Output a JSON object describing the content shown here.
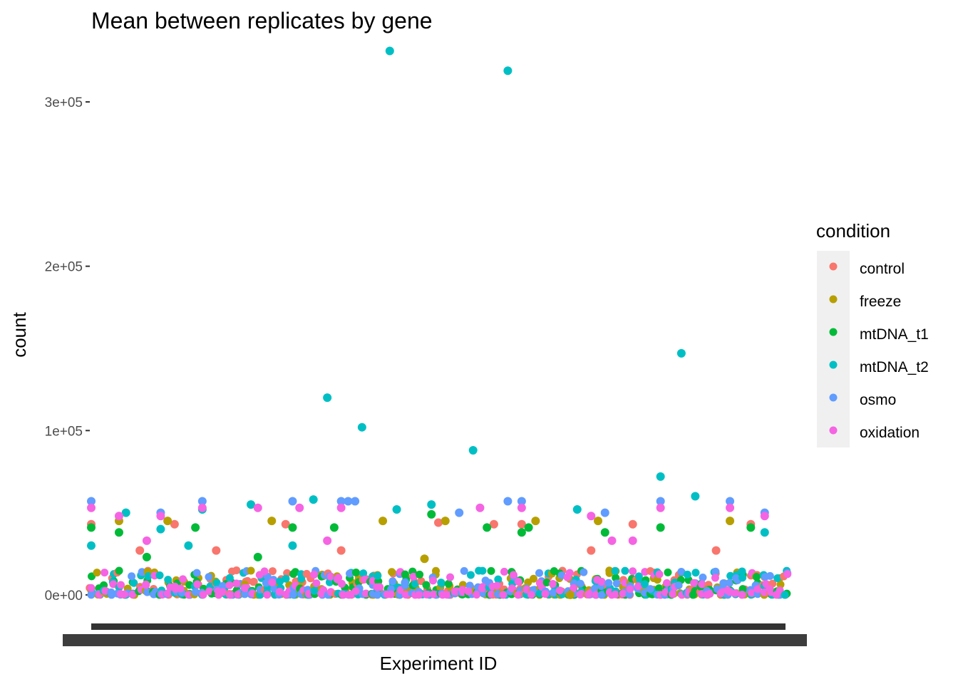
{
  "chart_data": {
    "type": "scatter",
    "title": "Mean between replicates by gene",
    "xlabel": "Experiment ID",
    "ylabel": "count",
    "ylim": [
      -10000,
      336000
    ],
    "y_ticks": [
      {
        "value": 0,
        "label": "0e+00"
      },
      {
        "value": 100000,
        "label": "1e+05"
      },
      {
        "value": 200000,
        "label": "2e+05"
      },
      {
        "value": 300000,
        "label": "3e+05"
      }
    ],
    "x_tick_labels_note": "x-axis tick labels overlap and are illegible",
    "grid": false,
    "legend": {
      "title": "condition",
      "position": "right",
      "entries": [
        {
          "name": "control",
          "color": "#F8766D"
        },
        {
          "name": "freeze",
          "color": "#B79F00"
        },
        {
          "name": "mtDNA_t1",
          "color": "#00BA38"
        },
        {
          "name": "mtDNA_t2",
          "color": "#00BFC4"
        },
        {
          "name": "osmo",
          "color": "#619CFF"
        },
        {
          "name": "oxidation",
          "color": "#F564E3"
        }
      ]
    },
    "x_range": [
      0,
      100
    ],
    "series": [
      {
        "name": "mtDNA_t2",
        "points": [
          [
            43,
            331000
          ],
          [
            60,
            319000
          ],
          [
            85,
            147000
          ],
          [
            34,
            120000
          ],
          [
            39,
            102000
          ],
          [
            55,
            88000
          ],
          [
            82,
            72000
          ],
          [
            87,
            60000
          ],
          [
            44,
            52000
          ],
          [
            70,
            52000
          ],
          [
            32,
            58000
          ],
          [
            5,
            50000
          ],
          [
            10,
            40000
          ],
          [
            16,
            52000
          ],
          [
            23,
            55000
          ],
          [
            49,
            55000
          ],
          [
            97,
            38000
          ],
          [
            0,
            30000
          ],
          [
            14,
            30000
          ],
          [
            29,
            30000
          ]
        ]
      },
      {
        "name": "control",
        "points": [
          [
            0,
            43000
          ],
          [
            12,
            43000
          ],
          [
            28,
            43000
          ],
          [
            50,
            44000
          ],
          [
            58,
            43000
          ],
          [
            62,
            43000
          ],
          [
            78,
            43000
          ],
          [
            95,
            43000
          ],
          [
            7,
            27000
          ],
          [
            18,
            27000
          ],
          [
            36,
            27000
          ],
          [
            72,
            27000
          ],
          [
            90,
            27000
          ]
        ]
      },
      {
        "name": "freeze",
        "points": [
          [
            4,
            45000
          ],
          [
            11,
            45000
          ],
          [
            26,
            45000
          ],
          [
            42,
            45000
          ],
          [
            51,
            45000
          ],
          [
            64,
            45000
          ],
          [
            73,
            45000
          ],
          [
            92,
            45000
          ],
          [
            48,
            22000
          ],
          [
            69,
            0
          ]
        ]
      },
      {
        "name": "mtDNA_t1",
        "points": [
          [
            0,
            41000
          ],
          [
            4,
            38000
          ],
          [
            15,
            41000
          ],
          [
            29,
            41000
          ],
          [
            35,
            41000
          ],
          [
            49,
            49000
          ],
          [
            57,
            41000
          ],
          [
            63,
            41000
          ],
          [
            74,
            38000
          ],
          [
            82,
            41000
          ],
          [
            95,
            41000
          ],
          [
            8,
            23000
          ],
          [
            24,
            23000
          ],
          [
            62,
            38000
          ]
        ]
      },
      {
        "name": "osmo",
        "points": [
          [
            0,
            57000
          ],
          [
            10,
            50000
          ],
          [
            16,
            57000
          ],
          [
            29,
            57000
          ],
          [
            36,
            57000
          ],
          [
            53,
            50000
          ],
          [
            60,
            57000
          ],
          [
            62,
            57000
          ],
          [
            74,
            50000
          ],
          [
            82,
            57000
          ],
          [
            92,
            57000
          ],
          [
            97,
            50000
          ],
          [
            37,
            57000
          ],
          [
            38,
            57000
          ]
        ]
      },
      {
        "name": "oxidation",
        "points": [
          [
            0,
            53000
          ],
          [
            4,
            48000
          ],
          [
            10,
            48000
          ],
          [
            16,
            53000
          ],
          [
            24,
            53000
          ],
          [
            30,
            53000
          ],
          [
            36,
            53000
          ],
          [
            56,
            53000
          ],
          [
            62,
            53000
          ],
          [
            72,
            48000
          ],
          [
            82,
            53000
          ],
          [
            92,
            53000
          ],
          [
            97,
            48000
          ],
          [
            8,
            33000
          ],
          [
            34,
            33000
          ],
          [
            75,
            33000
          ],
          [
            78,
            33000
          ]
        ]
      }
    ],
    "baseline_cluster": {
      "note": "dense overlapping points of all conditions near 0 to 15000 across every experiment",
      "y_range": [
        0,
        15000
      ],
      "x_count": 100
    }
  }
}
